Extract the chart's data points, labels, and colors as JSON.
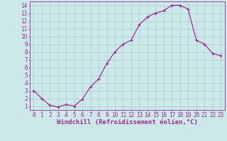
{
  "x": [
    0,
    1,
    2,
    3,
    4,
    5,
    6,
    7,
    8,
    9,
    10,
    11,
    12,
    13,
    14,
    15,
    16,
    17,
    18,
    19,
    20,
    21,
    22,
    23
  ],
  "y": [
    3.0,
    2.0,
    1.1,
    0.9,
    1.2,
    1.0,
    1.9,
    3.5,
    4.5,
    6.5,
    8.0,
    9.0,
    9.5,
    11.5,
    12.5,
    13.0,
    13.3,
    14.0,
    14.0,
    13.5,
    9.5,
    9.0,
    7.8,
    7.5
  ],
  "line_color": "#9b2d8e",
  "marker": "+",
  "marker_size": 3,
  "bg_color": "#cce8e8",
  "grid_color": "#aacccc",
  "xlabel": "Windchill (Refroidissement éolien,°C)",
  "xlim": [
    -0.5,
    23.5
  ],
  "ylim": [
    0.5,
    14.5
  ],
  "yticks": [
    1,
    2,
    3,
    4,
    5,
    6,
    7,
    8,
    9,
    10,
    11,
    12,
    13,
    14
  ],
  "xticks": [
    0,
    1,
    2,
    3,
    4,
    5,
    6,
    7,
    8,
    9,
    10,
    11,
    12,
    13,
    14,
    15,
    16,
    17,
    18,
    19,
    20,
    21,
    22,
    23
  ],
  "spine_color": "#9b2d8e",
  "tick_color": "#9b2d8e",
  "label_color": "#9b2d8e",
  "font_size_ticks": 5.5,
  "font_size_xlabel": 6.5
}
